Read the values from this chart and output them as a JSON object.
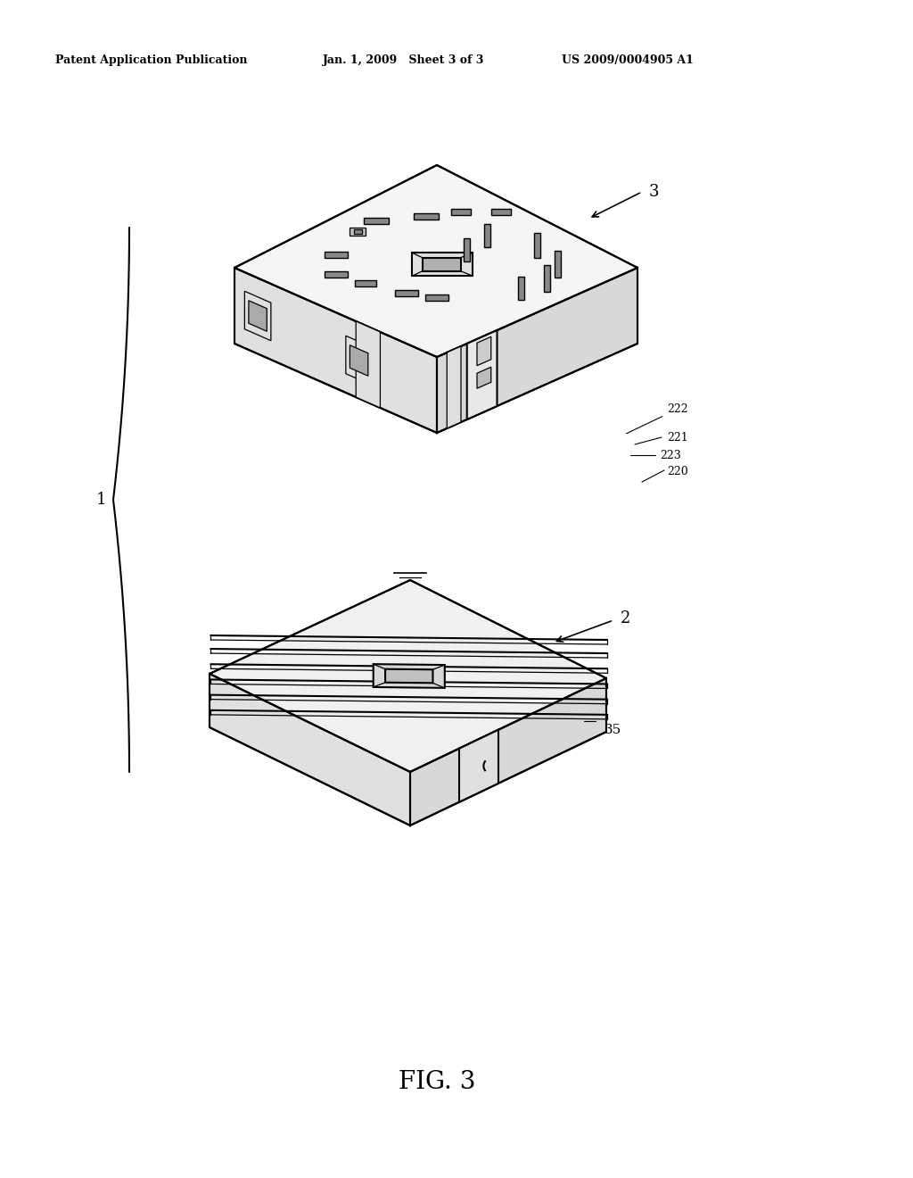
{
  "background_color": "#ffffff",
  "header_left": "Patent Application Publication",
  "header_mid": "Jan. 1, 2009   Sheet 3 of 3",
  "header_right": "US 2009/0004905 A1",
  "figure_label": "FIG. 3",
  "label_1": "1",
  "label_2": "2",
  "label_3": "3",
  "label_35": "35",
  "label_220": "220",
  "label_221": "221",
  "label_222": "222",
  "label_223": "223",
  "line_color": "#000000",
  "fill_top": "#ffffff",
  "fill_side": "#e8e8e8",
  "fill_front": "#f0f0f0"
}
